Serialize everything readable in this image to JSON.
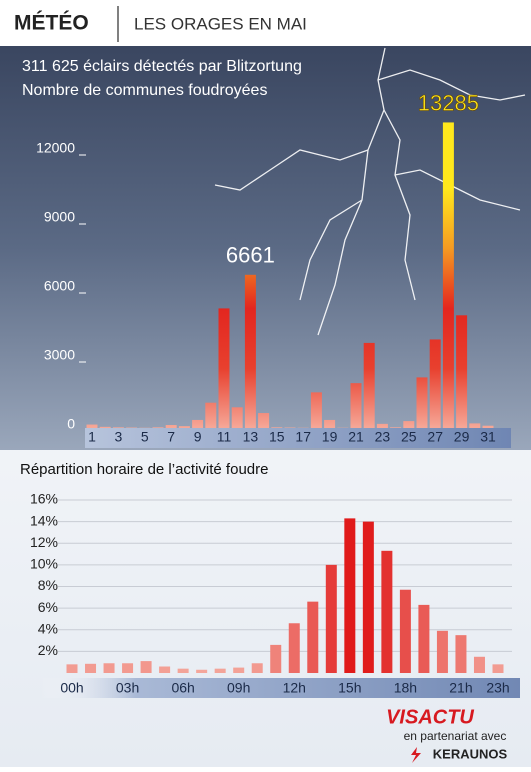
{
  "header": {
    "title": "MÉTÉO",
    "subtitle": "LES ORAGES EN MAI"
  },
  "chart_data": [
    {
      "type": "bar",
      "title": "311 625 éclairs détectés par Blitzortung",
      "subtitle": "Nombre de communes foudroyées",
      "categories": [
        "1",
        null,
        "3",
        null,
        "5",
        null,
        "7",
        null,
        "9",
        null,
        "11",
        null,
        "13",
        null,
        "15",
        null,
        "17",
        null,
        "19",
        null,
        "21",
        null,
        "23",
        null,
        "25",
        null,
        "27",
        null,
        "29",
        null,
        "31"
      ],
      "values": [
        150,
        50,
        30,
        20,
        10,
        30,
        130,
        80,
        350,
        1100,
        5200,
        900,
        6661,
        650,
        30,
        20,
        10,
        1550,
        350,
        10,
        1950,
        3700,
        180,
        30,
        300,
        2200,
        3850,
        13285,
        4900,
        200,
        100
      ],
      "value_labels": [
        null,
        null,
        null,
        null,
        null,
        null,
        null,
        null,
        null,
        null,
        null,
        null,
        "6661",
        null,
        null,
        null,
        null,
        null,
        null,
        null,
        null,
        null,
        null,
        null,
        null,
        null,
        null,
        "13285",
        null,
        null,
        null
      ],
      "colors": [
        "#f6a898",
        "#e8402e",
        "#e3261f",
        "#f59a22",
        "#ffe81c"
      ],
      "ylim": [
        0,
        16000
      ],
      "yticks": [
        0,
        3000,
        6000,
        9000,
        12000
      ]
    },
    {
      "type": "bar",
      "title": "Répartition horaire de l’activité foudre",
      "categories": [
        "00h",
        null,
        null,
        "03h",
        null,
        null,
        "06h",
        null,
        null,
        "09h",
        null,
        null,
        "12h",
        null,
        null,
        "15h",
        null,
        null,
        "18h",
        null,
        null,
        "21h",
        null,
        "23h"
      ],
      "values": [
        0.8,
        0.85,
        0.9,
        0.9,
        1.1,
        0.6,
        0.4,
        0.3,
        0.4,
        0.5,
        0.9,
        2.6,
        4.6,
        6.6,
        10.0,
        14.3,
        14.0,
        11.3,
        7.7,
        6.3,
        3.9,
        3.5,
        1.5,
        0.8
      ],
      "colors": [
        "#f5b0a4",
        "#e01a1a"
      ],
      "ylim": [
        0,
        16
      ],
      "yticks": [
        {
          "value": 2,
          "label": "2%"
        },
        {
          "value": 4,
          "label": "4%"
        },
        {
          "value": 6,
          "label": "6%"
        },
        {
          "value": 8,
          "label": "8%"
        },
        {
          "value": 10,
          "label": "10%"
        },
        {
          "value": 12,
          "label": "12%"
        },
        {
          "value": 14,
          "label": "14%"
        },
        {
          "value": 16,
          "label": "16%"
        }
      ],
      "grid": true
    }
  ],
  "footer": {
    "brand": "VISACTU",
    "partner_text": "en partenariat avec",
    "partner": "KERAUNOS"
  }
}
